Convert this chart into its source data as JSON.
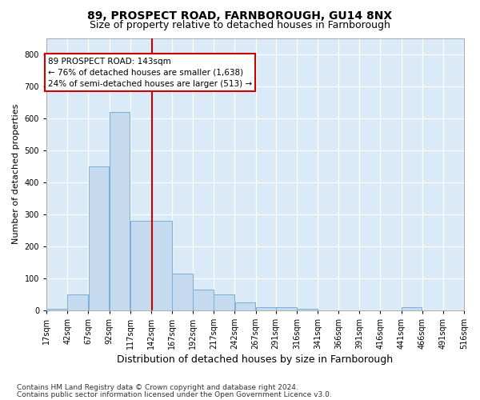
{
  "title1": "89, PROSPECT ROAD, FARNBOROUGH, GU14 8NX",
  "title2": "Size of property relative to detached houses in Farnborough",
  "xlabel": "Distribution of detached houses by size in Farnborough",
  "ylabel": "Number of detached properties",
  "footnote1": "Contains HM Land Registry data © Crown copyright and database right 2024.",
  "footnote2": "Contains public sector information licensed under the Open Government Licence v3.0.",
  "annotation_line1": "89 PROSPECT ROAD: 143sqm",
  "annotation_line2": "← 76% of detached houses are smaller (1,638)",
  "annotation_line3": "24% of semi-detached houses are larger (513) →",
  "bar_color": "#c5d9ef",
  "bar_edge_color": "#7bafd4",
  "vline_color": "#cc0000",
  "vline_x": 143,
  "bg_color": "#daeaf7",
  "fig_bg": "#ffffff",
  "grid_color": "#ffffff",
  "bin_edges": [
    17,
    42,
    67,
    92,
    117,
    142,
    167,
    192,
    217,
    242,
    267,
    291,
    316,
    341,
    366,
    391,
    416,
    441,
    466,
    491,
    516
  ],
  "bin_labels": [
    "17sqm",
    "42sqm",
    "67sqm",
    "92sqm",
    "117sqm",
    "142sqm",
    "167sqm",
    "192sqm",
    "217sqm",
    "242sqm",
    "267sqm",
    "291sqm",
    "316sqm",
    "341sqm",
    "366sqm",
    "391sqm",
    "416sqm",
    "441sqm",
    "466sqm",
    "491sqm",
    "516sqm"
  ],
  "counts": [
    5,
    50,
    450,
    620,
    280,
    280,
    115,
    65,
    50,
    25,
    10,
    10,
    5,
    0,
    0,
    0,
    0,
    8,
    0,
    0,
    0
  ],
  "ylim": [
    0,
    850
  ],
  "yticks": [
    0,
    100,
    200,
    300,
    400,
    500,
    600,
    700,
    800
  ],
  "title1_fontsize": 10,
  "title2_fontsize": 9,
  "ylabel_fontsize": 8,
  "xlabel_fontsize": 9,
  "tick_fontsize": 7,
  "annot_fontsize": 7.5,
  "footnote_fontsize": 6.5
}
